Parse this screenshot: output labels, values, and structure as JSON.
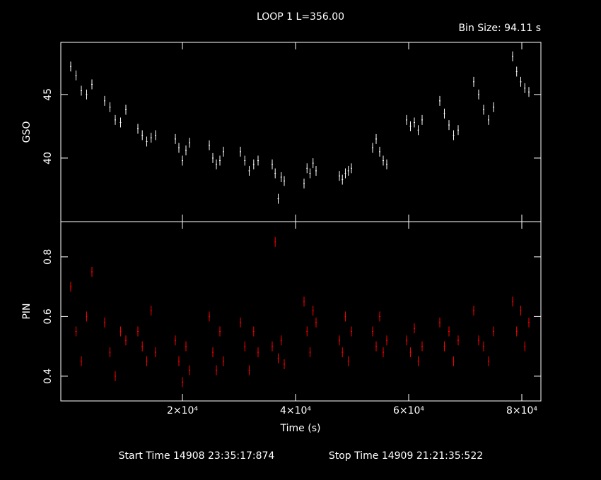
{
  "chart_data": [
    {
      "type": "scatter",
      "title": "LOOP 1 L=356.00",
      "subtitle": "Bin Size: 94.11 s",
      "ylabel": "GSO",
      "color": "#ffffff",
      "x": [
        250,
        1190,
        2125,
        3060,
        4000,
        6250,
        7190,
        8125,
        9060,
        10000,
        12125,
        12900,
        13690,
        14470,
        15250,
        18750,
        19375,
        20000,
        20625,
        21250,
        24750,
        25375,
        26000,
        26625,
        27250,
        30250,
        31030,
        31810,
        32600,
        33375,
        35875,
        36400,
        36940,
        37470,
        38000,
        41500,
        42030,
        42560,
        43090,
        43625,
        47750,
        48280,
        48810,
        49340,
        49875,
        53625,
        54250,
        54875,
        55500,
        56125,
        59625,
        60310,
        61000,
        61690,
        62375,
        65500,
        66310,
        67125,
        67940,
        68750,
        71500,
        72375,
        73250,
        74125,
        75000,
        78375,
        79090,
        79810,
        80530,
        81250
      ],
      "values": [
        47.2,
        46.5,
        45.3,
        45.0,
        45.8,
        44.5,
        44.0,
        43.0,
        42.8,
        43.8,
        42.3,
        41.8,
        41.3,
        41.6,
        41.8,
        41.5,
        40.8,
        39.8,
        40.6,
        41.2,
        41.0,
        40.0,
        39.5,
        39.8,
        40.5,
        40.5,
        39.8,
        39.0,
        39.5,
        39.8,
        39.5,
        38.8,
        36.8,
        38.5,
        38.2,
        38.0,
        39.2,
        38.8,
        39.6,
        39.0,
        38.6,
        38.3,
        38.8,
        39.0,
        39.2,
        40.8,
        41.5,
        40.5,
        39.8,
        39.5,
        43.0,
        42.5,
        42.8,
        42.2,
        43.0,
        44.5,
        43.5,
        42.6,
        41.8,
        42.2,
        46.0,
        45.0,
        43.8,
        43.0,
        44.0,
        48.0,
        46.8,
        46.0,
        45.5,
        45.2
      ],
      "xlim": [
        -1500,
        83375
      ],
      "ylim": [
        35,
        49.1
      ],
      "yticks": [
        40,
        45
      ]
    },
    {
      "type": "scatter",
      "ylabel": "PIN",
      "xlabel": "Time (s)",
      "color": "#ff0000",
      "x": [
        250,
        1190,
        2125,
        3060,
        4000,
        6250,
        7190,
        8125,
        9060,
        10000,
        12125,
        12900,
        13690,
        14470,
        15250,
        18750,
        19375,
        20000,
        20625,
        21250,
        24750,
        25375,
        26000,
        26625,
        27250,
        30250,
        31030,
        31810,
        32600,
        33375,
        35875,
        36400,
        36940,
        37470,
        38000,
        41500,
        42030,
        42560,
        43090,
        43625,
        47750,
        48280,
        48810,
        49340,
        49875,
        53625,
        54250,
        54875,
        55500,
        56125,
        59625,
        60310,
        61000,
        61690,
        62375,
        65500,
        66310,
        67125,
        67940,
        68750,
        71500,
        72375,
        73250,
        74125,
        75000,
        78375,
        79090,
        79810,
        80530,
        81250
      ],
      "values": [
        0.7,
        0.55,
        0.45,
        0.6,
        0.75,
        0.58,
        0.48,
        0.4,
        0.55,
        0.52,
        0.55,
        0.5,
        0.45,
        0.62,
        0.48,
        0.52,
        0.45,
        0.38,
        0.5,
        0.42,
        0.6,
        0.48,
        0.42,
        0.55,
        0.45,
        0.58,
        0.5,
        0.42,
        0.55,
        0.48,
        0.5,
        0.85,
        0.46,
        0.52,
        0.44,
        0.65,
        0.55,
        0.48,
        0.62,
        0.58,
        0.52,
        0.48,
        0.6,
        0.45,
        0.55,
        0.55,
        0.5,
        0.6,
        0.48,
        0.52,
        0.52,
        0.48,
        0.56,
        0.45,
        0.5,
        0.58,
        0.5,
        0.55,
        0.45,
        0.52,
        0.62,
        0.52,
        0.5,
        0.45,
        0.55,
        0.65,
        0.55,
        0.62,
        0.5,
        0.58
      ],
      "xlim": [
        -1500,
        83375
      ],
      "ylim": [
        0.317,
        0.918
      ],
      "yticks": [
        0.4,
        0.6,
        0.8
      ],
      "xticks": [
        {
          "value": 20000,
          "label": "2×10⁴"
        },
        {
          "value": 40000,
          "label": "4×10⁴"
        },
        {
          "value": 60000,
          "label": "6×10⁴"
        },
        {
          "value": 80000,
          "label": "8×10⁴"
        }
      ],
      "annotations": [
        "Start Time 14908 23:35:17:874",
        "Stop Time 14909 21:21:35:522"
      ]
    }
  ]
}
